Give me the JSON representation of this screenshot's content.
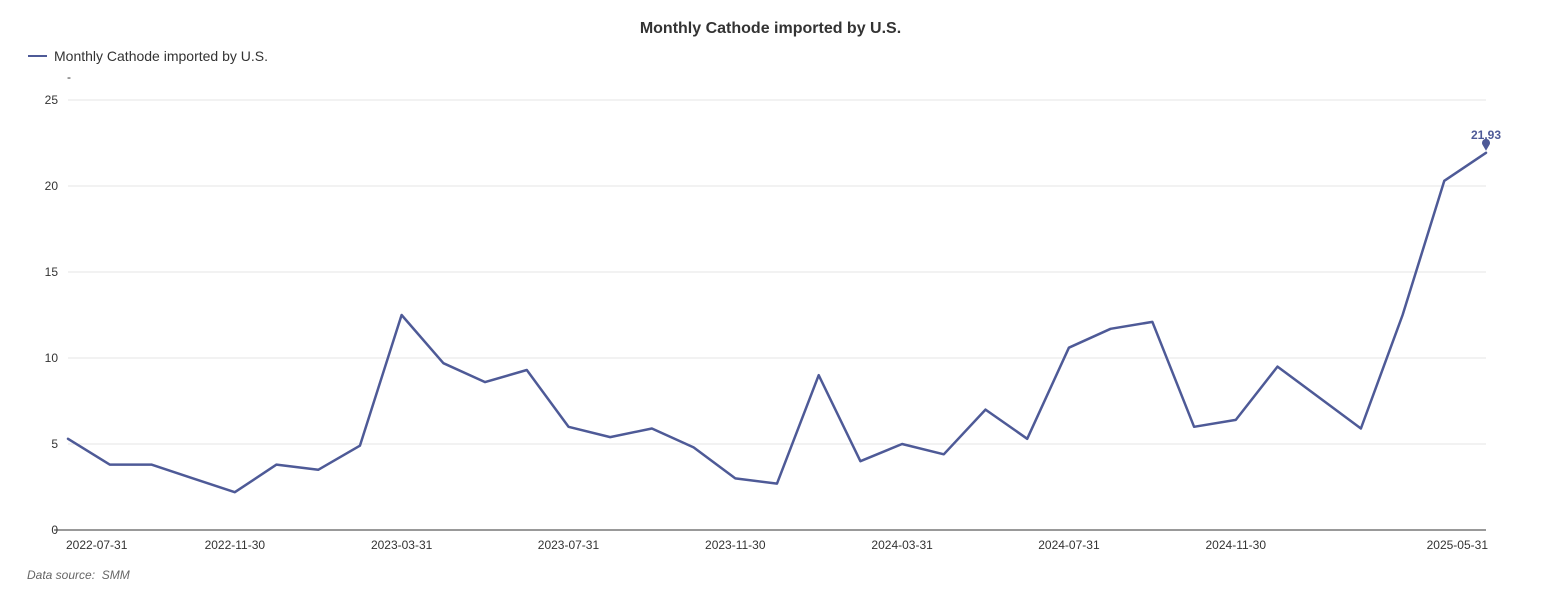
{
  "chart_data": {
    "type": "line",
    "title": "Monthly Cathode imported by U.S.",
    "y_unit": "-",
    "ylim": [
      0,
      25
    ],
    "y_ticks": [
      0,
      5,
      10,
      15,
      20,
      25
    ],
    "grid": true,
    "legend_placement": "top-left",
    "x": [
      "2022-07-31",
      "2022-08-31",
      "2022-09-30",
      "2022-10-31",
      "2022-11-30",
      "2022-12-31",
      "2023-01-31",
      "2023-02-28",
      "2023-03-31",
      "2023-04-30",
      "2023-05-31",
      "2023-06-30",
      "2023-07-31",
      "2023-08-31",
      "2023-09-30",
      "2023-10-31",
      "2023-11-30",
      "2023-12-31",
      "2024-01-31",
      "2024-02-29",
      "2024-03-31",
      "2024-04-30",
      "2024-05-31",
      "2024-06-30",
      "2024-07-31",
      "2024-08-31",
      "2024-09-30",
      "2024-10-31",
      "2024-11-30",
      "2024-12-31",
      "2025-01-31",
      "2025-02-28",
      "2025-03-31",
      "2025-04-30",
      "2025-05-31"
    ],
    "x_tick_labels": [
      "2022-07-31",
      "2022-11-30",
      "2023-03-31",
      "2023-07-31",
      "2023-11-30",
      "2024-03-31",
      "2024-07-31",
      "2024-11-30",
      "2025-05-31"
    ],
    "series": [
      {
        "name": "Monthly Cathode imported by U.S.",
        "color": "#4e5a97",
        "values": [
          5.3,
          3.8,
          3.8,
          3.0,
          2.2,
          3.8,
          3.5,
          4.9,
          12.5,
          9.7,
          8.6,
          9.3,
          6.0,
          5.4,
          5.9,
          4.8,
          3.0,
          2.7,
          9.0,
          4.0,
          5.0,
          4.4,
          7.0,
          5.3,
          10.6,
          11.7,
          12.1,
          6.0,
          6.4,
          9.5,
          null,
          5.9,
          12.5,
          20.3,
          21.93
        ]
      }
    ],
    "annotations": [
      {
        "x": "2025-05-31",
        "value": 21.93,
        "label": "21.93"
      }
    ]
  },
  "footer": {
    "source_label": "Data source:",
    "source_name": "SMM"
  }
}
